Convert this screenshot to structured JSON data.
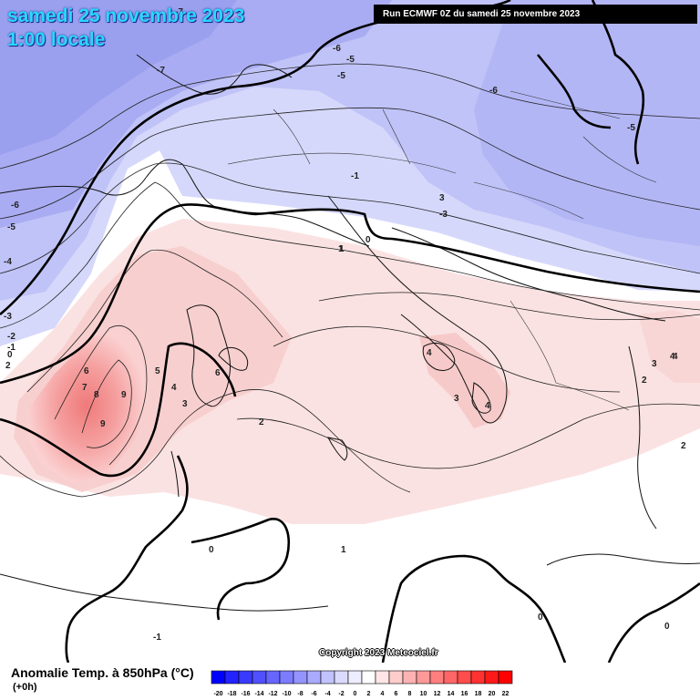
{
  "header": {
    "date": "samedi 25 novembre 2023",
    "time": "1:00 locale",
    "run": "Run ECMWF 0Z du samedi 25 novembre 2023"
  },
  "copyright": "Copyright 2023 Meteociel.fr",
  "footer": {
    "title": "Anomalie Temp. à 850hPa (°C)",
    "lead": "(+0h)"
  },
  "legend": {
    "values": [
      "-20",
      "-18",
      "-16",
      "-14",
      "-12",
      "-10",
      "-8",
      "-6",
      "-4",
      "-2",
      "0",
      "2",
      "4",
      "6",
      "8",
      "10",
      "12",
      "14",
      "16",
      "18",
      "20",
      "22"
    ],
    "colors": [
      "#0000ff",
      "#2323ff",
      "#3a3aff",
      "#5050ff",
      "#6666ff",
      "#7c7cff",
      "#9494ff",
      "#aaaaff",
      "#c2c2ff",
      "#dadaff",
      "#ededff",
      "#ffffff",
      "#ffe5e5",
      "#ffcccc",
      "#ffb2b2",
      "#ff9999",
      "#ff7f7f",
      "#ff6666",
      "#ff4c4c",
      "#ff3232",
      "#ff1a1a",
      "#ff0000"
    ]
  },
  "contour_labels": [
    {
      "text": "-7"
    },
    {
      "text": "-7"
    },
    {
      "text": "-6"
    },
    {
      "text": "-5"
    },
    {
      "text": "-5"
    },
    {
      "text": "-6"
    },
    {
      "text": "-5"
    },
    {
      "text": "-4"
    },
    {
      "text": "-3"
    },
    {
      "text": "-2"
    },
    {
      "text": "-1"
    },
    {
      "text": "0"
    },
    {
      "text": "2"
    },
    {
      "text": "3"
    },
    {
      "text": "4"
    },
    {
      "text": "5"
    },
    {
      "text": "6"
    },
    {
      "text": "7"
    },
    {
      "text": "8"
    },
    {
      "text": "9"
    },
    {
      "text": "9"
    },
    {
      "text": "6"
    },
    {
      "text": "-1"
    },
    {
      "text": "0"
    },
    {
      "text": "1"
    },
    {
      "text": "3"
    },
    {
      "text": "-3"
    },
    {
      "text": "-5"
    },
    {
      "text": "-6"
    },
    {
      "text": "4"
    },
    {
      "text": "3"
    },
    {
      "text": "4"
    },
    {
      "text": "4"
    },
    {
      "text": "2"
    },
    {
      "text": "3"
    },
    {
      "text": "4"
    },
    {
      "text": "2"
    },
    {
      "text": "2"
    },
    {
      "text": "1"
    },
    {
      "text": "0"
    },
    {
      "text": "0"
    },
    {
      "text": "0"
    },
    {
      "text": "-1"
    },
    {
      "text": "1"
    }
  ]
}
